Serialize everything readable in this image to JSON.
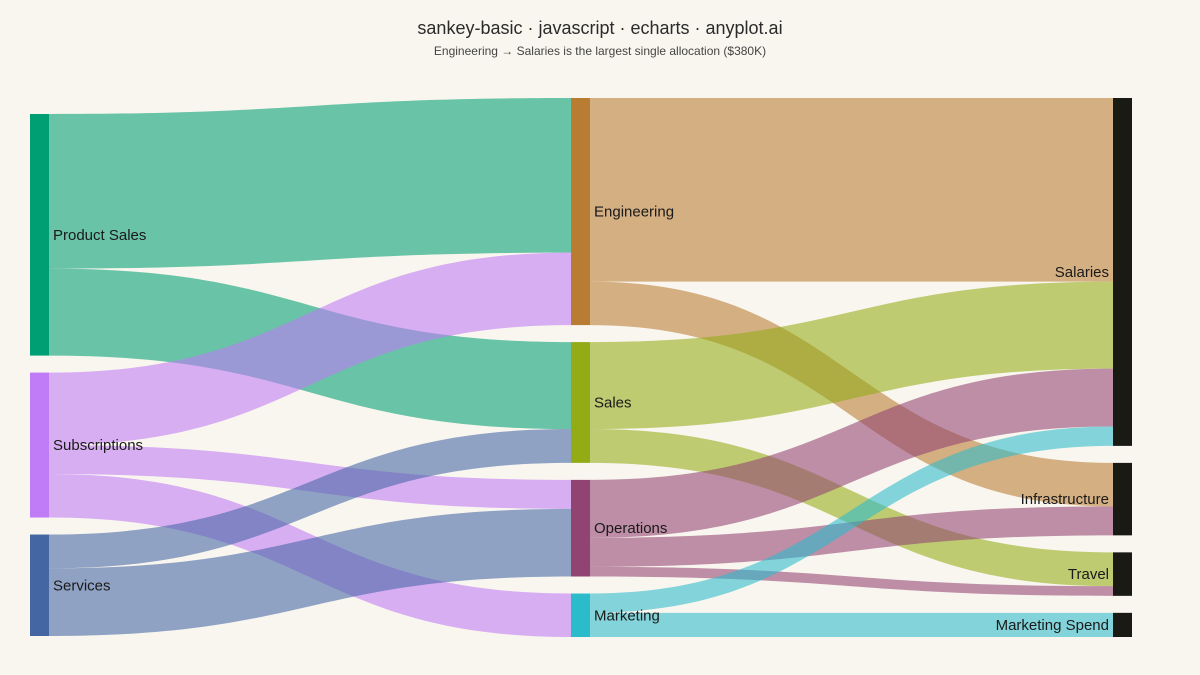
{
  "header": {
    "title": "sankey-basic · javascript · echarts · anyplot.ai",
    "subtitle": "Engineering → Salaries is the largest single allocation ($380K)"
  },
  "chart_data": {
    "type": "sankey",
    "units": "$K",
    "nodes": [
      {
        "name": "Product Sales",
        "color": "#009e73",
        "column": 0
      },
      {
        "name": "Subscriptions",
        "color": "#c07bf7",
        "column": 0
      },
      {
        "name": "Services",
        "color": "#4466a3",
        "column": 0
      },
      {
        "name": "Engineering",
        "color": "#b87c32",
        "column": 1
      },
      {
        "name": "Sales",
        "color": "#93ac16",
        "column": 1
      },
      {
        "name": "Operations",
        "color": "#914471",
        "column": 1
      },
      {
        "name": "Marketing",
        "color": "#2bbccc",
        "column": 1
      },
      {
        "name": "Salaries",
        "color": "#1a1a14",
        "column": 2
      },
      {
        "name": "Infrastructure",
        "color": "#1a1a14",
        "column": 2
      },
      {
        "name": "Travel",
        "color": "#1a1a14",
        "column": 2
      },
      {
        "name": "Marketing Spend",
        "color": "#1a1a14",
        "column": 2
      }
    ],
    "links": [
      {
        "source": "Product Sales",
        "target": "Engineering",
        "value": 320
      },
      {
        "source": "Product Sales",
        "target": "Sales",
        "value": 180
      },
      {
        "source": "Subscriptions",
        "target": "Engineering",
        "value": 150
      },
      {
        "source": "Subscriptions",
        "target": "Operations",
        "value": 60
      },
      {
        "source": "Subscriptions",
        "target": "Marketing",
        "value": 90
      },
      {
        "source": "Services",
        "target": "Sales",
        "value": 70
      },
      {
        "source": "Services",
        "target": "Operations",
        "value": 140
      },
      {
        "source": "Engineering",
        "target": "Salaries",
        "value": 380
      },
      {
        "source": "Engineering",
        "target": "Infrastructure",
        "value": 90
      },
      {
        "source": "Sales",
        "target": "Salaries",
        "value": 180
      },
      {
        "source": "Sales",
        "target": "Travel",
        "value": 70
      },
      {
        "source": "Operations",
        "target": "Salaries",
        "value": 120
      },
      {
        "source": "Operations",
        "target": "Infrastructure",
        "value": 60
      },
      {
        "source": "Operations",
        "target": "Travel",
        "value": 20
      },
      {
        "source": "Marketing",
        "target": "Salaries",
        "value": 40
      },
      {
        "source": "Marketing",
        "target": "Marketing Spend",
        "value": 50
      }
    ]
  }
}
